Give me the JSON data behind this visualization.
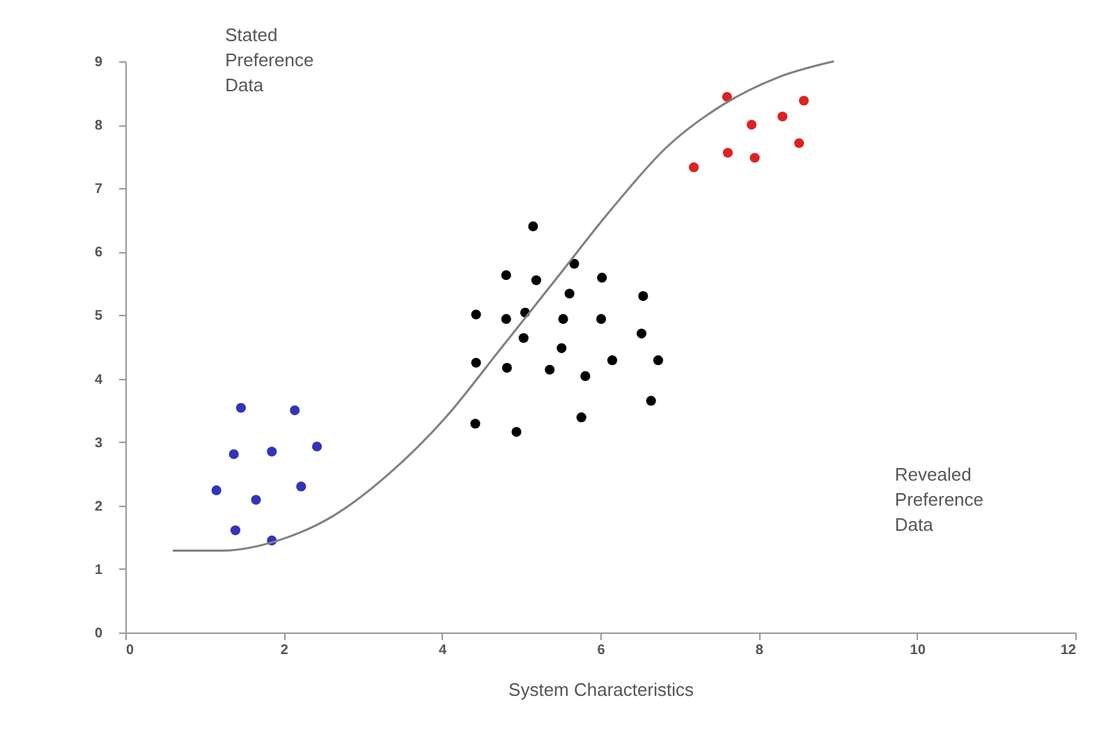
{
  "chart_data": {
    "type": "scatter",
    "xlabel": "System Characteristics",
    "xlim": [
      0,
      12
    ],
    "xticks": [
      0,
      2,
      4,
      6,
      8,
      10,
      12
    ],
    "ylim": [
      0,
      9
    ],
    "yticks": [
      0,
      1,
      2,
      3,
      4,
      5,
      6,
      7,
      8,
      9
    ],
    "grid": false,
    "marker": "circle",
    "annotations": [
      "Stated\nPreference\nData",
      "Revealed\nPreference\nData"
    ],
    "series": [
      {
        "color": "#3333bb",
        "x": [
          1.46,
          2.14,
          1.37,
          1.85,
          2.42,
          1.15,
          2.22,
          1.65,
          1.39,
          1.85
        ],
        "values": [
          3.54,
          3.5,
          2.81,
          2.85,
          2.93,
          2.24,
          2.3,
          2.09,
          1.61,
          1.45
        ]
      },
      {
        "color": "#000000",
        "x": [
          5.15,
          4.81,
          5.19,
          5.67,
          6.02,
          5.61,
          6.54,
          4.43,
          4.81,
          5.05,
          5.53,
          6.01,
          5.03,
          6.52,
          5.51,
          4.43,
          4.82,
          5.36,
          5.81,
          6.15,
          6.73,
          6.64,
          5.76,
          4.42,
          4.94
        ],
        "values": [
          6.4,
          5.63,
          5.55,
          5.81,
          5.59,
          5.34,
          5.3,
          5.01,
          4.94,
          5.04,
          4.94,
          4.94,
          4.64,
          4.71,
          4.48,
          4.25,
          4.17,
          4.14,
          4.04,
          4.29,
          4.29,
          3.65,
          3.39,
          3.29,
          3.16
        ]
      },
      {
        "color": "#dd2222",
        "x": [
          7.6,
          8.57,
          8.3,
          7.91,
          8.51,
          7.61,
          7.95,
          7.18
        ],
        "values": [
          8.44,
          8.38,
          8.13,
          8.0,
          7.71,
          7.56,
          7.48,
          7.33
        ]
      },
      {
        "type": "line",
        "color": "#808080",
        "marker": "none",
        "line_style": "solid",
        "x": [
          0.6,
          1.23,
          1.93,
          2.63,
          3.33,
          4.04,
          4.74,
          5.44,
          6.14,
          6.84,
          7.54,
          8.25,
          8.95
        ],
        "values": [
          1.29,
          1.29,
          1.45,
          1.84,
          2.5,
          3.38,
          4.47,
          5.57,
          6.67,
          7.65,
          8.31,
          8.75,
          9.0
        ]
      }
    ]
  }
}
